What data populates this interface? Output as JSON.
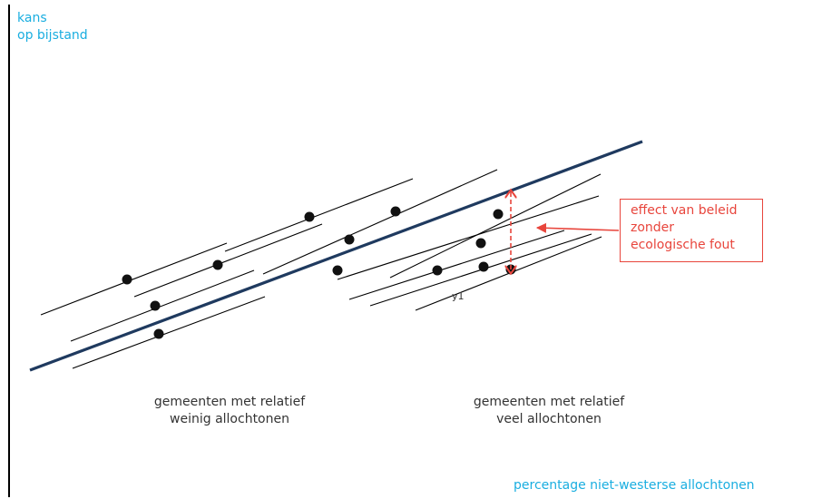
{
  "axes": {
    "y_label": [
      "kans",
      "op bijstand"
    ],
    "x_label": "percentage niet-westerse allochtonen"
  },
  "groups": {
    "few": [
      "gemeenten met relatief",
      "weinig allochtonen"
    ],
    "many": [
      "gemeenten met relatief",
      "veel allochtonen"
    ]
  },
  "callout": [
    "effect van beleid",
    "zonder",
    "ecologische fout"
  ],
  "point_label": "y1",
  "colors": {
    "axis_text": "#1aaee0",
    "main_line": "#1f3a5f",
    "callout": "#e8453c",
    "lines": "#000000",
    "text": "#333333"
  }
}
